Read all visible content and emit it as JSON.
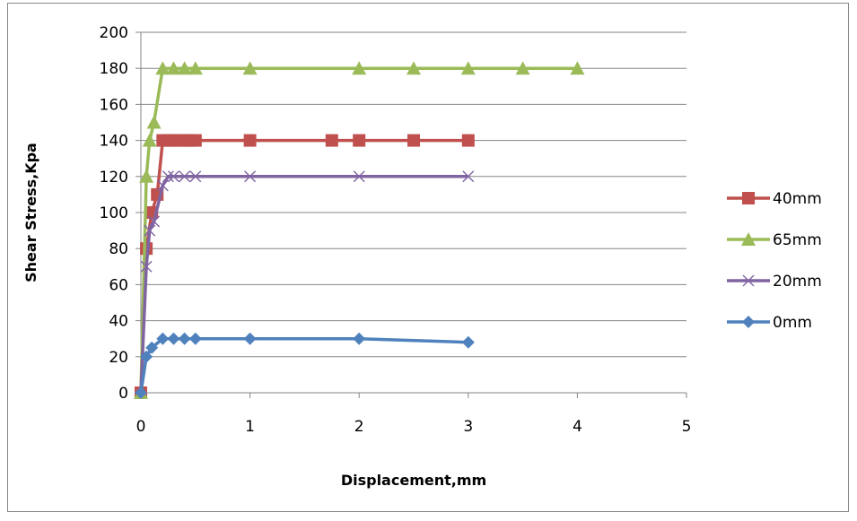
{
  "chart_data": {
    "type": "line",
    "title": "",
    "xlabel": "Displacement,mm",
    "ylabel": "Shear Stress,Kpa",
    "xlim": [
      0,
      5
    ],
    "ylim": [
      0,
      200
    ],
    "xticks": [
      "0",
      "1",
      "2",
      "3",
      "4",
      "5"
    ],
    "yticks": [
      "0",
      "20",
      "40",
      "60",
      "80",
      "100",
      "120",
      "140",
      "160",
      "180",
      "200"
    ],
    "grid": "horizontal",
    "legend": "right",
    "series": [
      {
        "name": "40mm",
        "color": "#C0504D",
        "marker": "square",
        "x": [
          0,
          0.05,
          0.1,
          0.15,
          0.2,
          0.25,
          0.3,
          0.35,
          0.4,
          0.45,
          0.5,
          1,
          1.75,
          2,
          2.5,
          3
        ],
        "y": [
          0,
          80,
          100,
          110,
          140,
          140,
          140,
          140,
          140,
          140,
          140,
          140,
          140,
          140,
          140,
          140
        ]
      },
      {
        "name": "65mm",
        "color": "#9BBB59",
        "marker": "triangle",
        "x": [
          0,
          0.05,
          0.08,
          0.12,
          0.2,
          0.3,
          0.4,
          0.5,
          1,
          2,
          2.5,
          3,
          3.5,
          4
        ],
        "y": [
          0,
          120,
          140,
          150,
          180,
          180,
          180,
          180,
          180,
          180,
          180,
          180,
          180,
          180
        ]
      },
      {
        "name": "20mm",
        "color": "#8064A2",
        "marker": "x",
        "x": [
          0,
          0.05,
          0.08,
          0.12,
          0.2,
          0.25,
          0.3,
          0.4,
          0.5,
          1,
          2,
          3
        ],
        "y": [
          0,
          70,
          90,
          95,
          115,
          120,
          120,
          120,
          120,
          120,
          120,
          120
        ],
        "show_markers": [
          false,
          true,
          true,
          true,
          true,
          true,
          true,
          true,
          true,
          true,
          true,
          true
        ]
      },
      {
        "name": "0mm",
        "color": "#4F81BD",
        "marker": "diamond",
        "x": [
          0,
          0.05,
          0.1,
          0.2,
          0.3,
          0.4,
          0.5,
          1,
          2,
          3
        ],
        "y": [
          0,
          20,
          25,
          30,
          30,
          30,
          30,
          30,
          30,
          28
        ]
      }
    ]
  }
}
